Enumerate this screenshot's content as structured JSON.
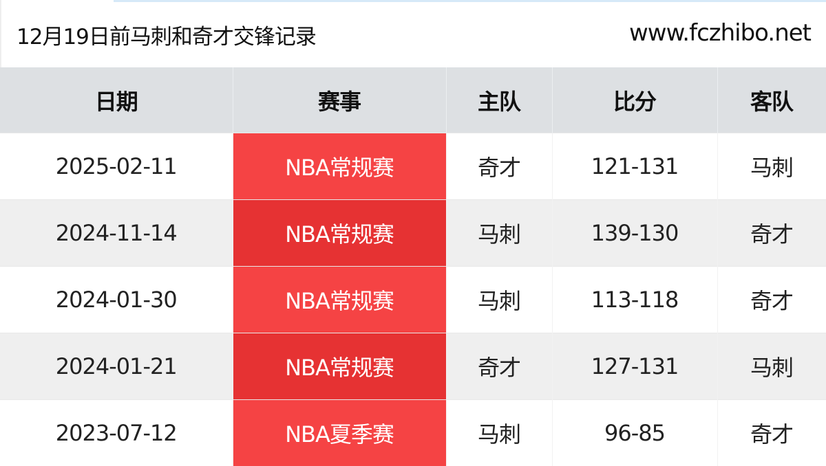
{
  "header": {
    "title": "12月19日前马刺和奇才交锋记录",
    "site": "www.fczhibo.net"
  },
  "table": {
    "columns": [
      "日期",
      "赛事",
      "主队",
      "比分",
      "客队"
    ],
    "rows": [
      {
        "date": "2025-02-11",
        "competition": "NBA常规赛",
        "home": "奇才",
        "score": "121-131",
        "away": "马刺"
      },
      {
        "date": "2024-11-14",
        "competition": "NBA常规赛",
        "home": "马刺",
        "score": "139-130",
        "away": "奇才"
      },
      {
        "date": "2024-01-30",
        "competition": "NBA常规赛",
        "home": "马刺",
        "score": "113-118",
        "away": "奇才"
      },
      {
        "date": "2024-01-21",
        "competition": "NBA常规赛",
        "home": "奇才",
        "score": "127-131",
        "away": "马刺"
      },
      {
        "date": "2023-07-12",
        "competition": "NBA夏季赛",
        "home": "马刺",
        "score": "96-85",
        "away": "奇才"
      }
    ]
  },
  "colors": {
    "competition_bg": "#f54344",
    "competition_bg_alt": "#e63233",
    "header_bg": "#dde0e3"
  }
}
